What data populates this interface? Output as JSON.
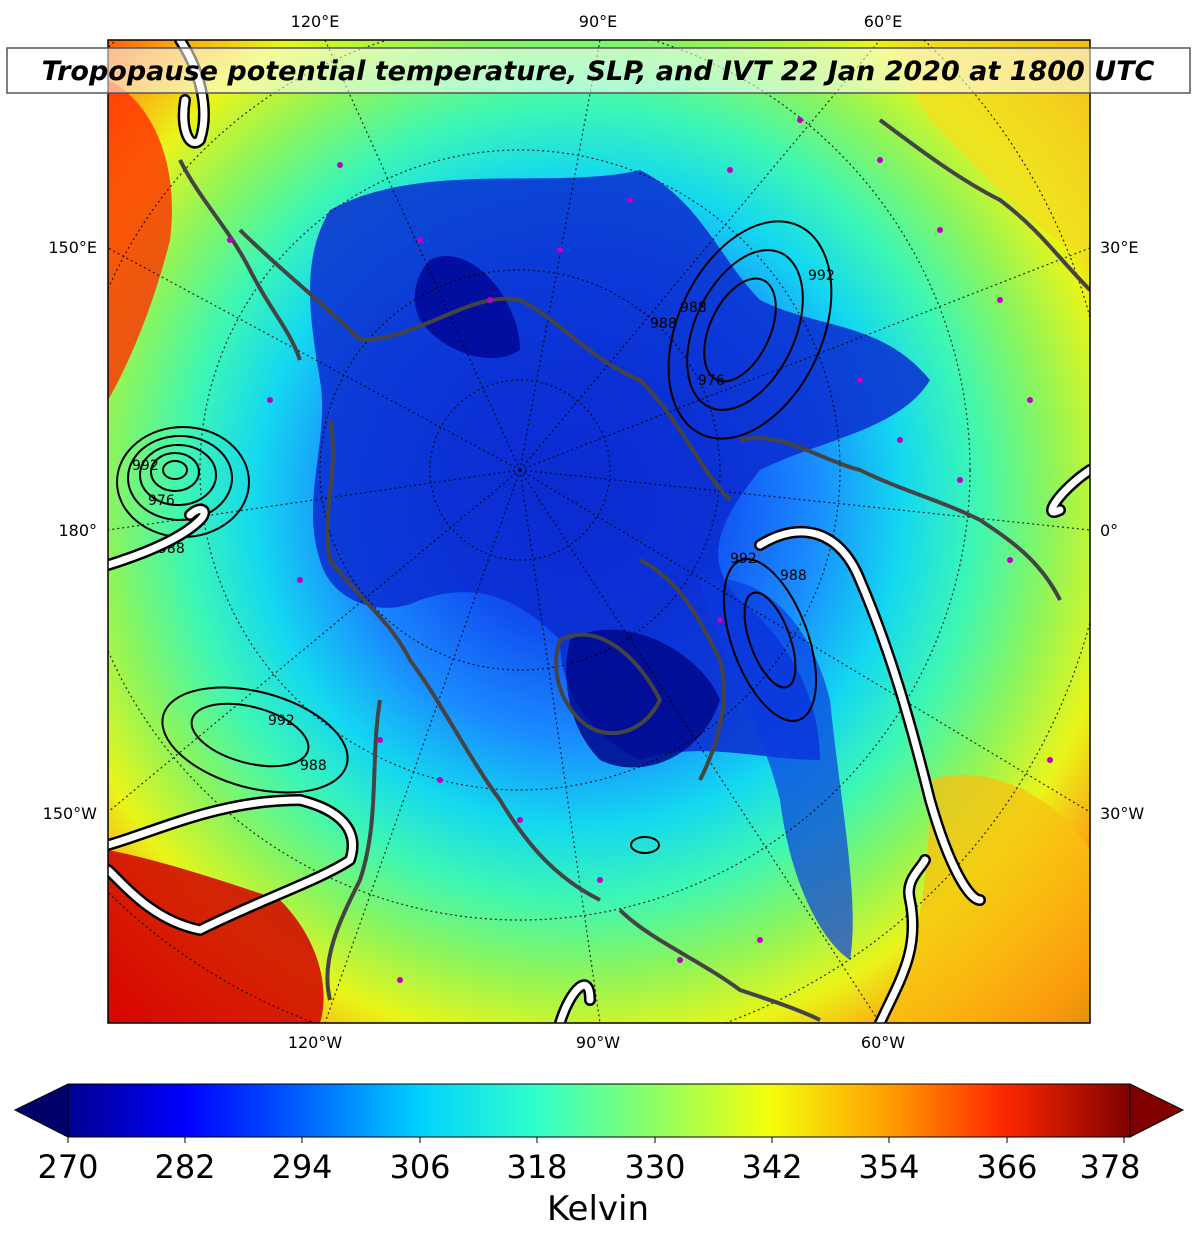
{
  "title": "Tropopause potential temperature, SLP, and IVT 22 Jan 2020 at 1800 UTC",
  "top_labels": [
    "120°E",
    "90°E",
    "60°E"
  ],
  "bottom_labels": [
    "120°W",
    "90°W",
    "60°W"
  ],
  "left_labels": [
    "150°E",
    "180°",
    "150°W"
  ],
  "right_labels": [
    "30°E",
    "0°",
    "30°W"
  ],
  "slp_labels": [
    "992",
    "988",
    "976",
    "988",
    "992",
    "988",
    "992",
    "976",
    "988",
    "992",
    "988"
  ],
  "colorbar": {
    "ticks": [
      "270",
      "282",
      "294",
      "306",
      "318",
      "330",
      "342",
      "354",
      "366",
      "378"
    ],
    "label": "Kelvin",
    "colors": [
      "#00007f",
      "#0000ff",
      "#0080ff",
      "#00e5ff",
      "#40ffbf",
      "#9cff5a",
      "#ffff00",
      "#ffa500",
      "#ff2000",
      "#800000"
    ]
  }
}
